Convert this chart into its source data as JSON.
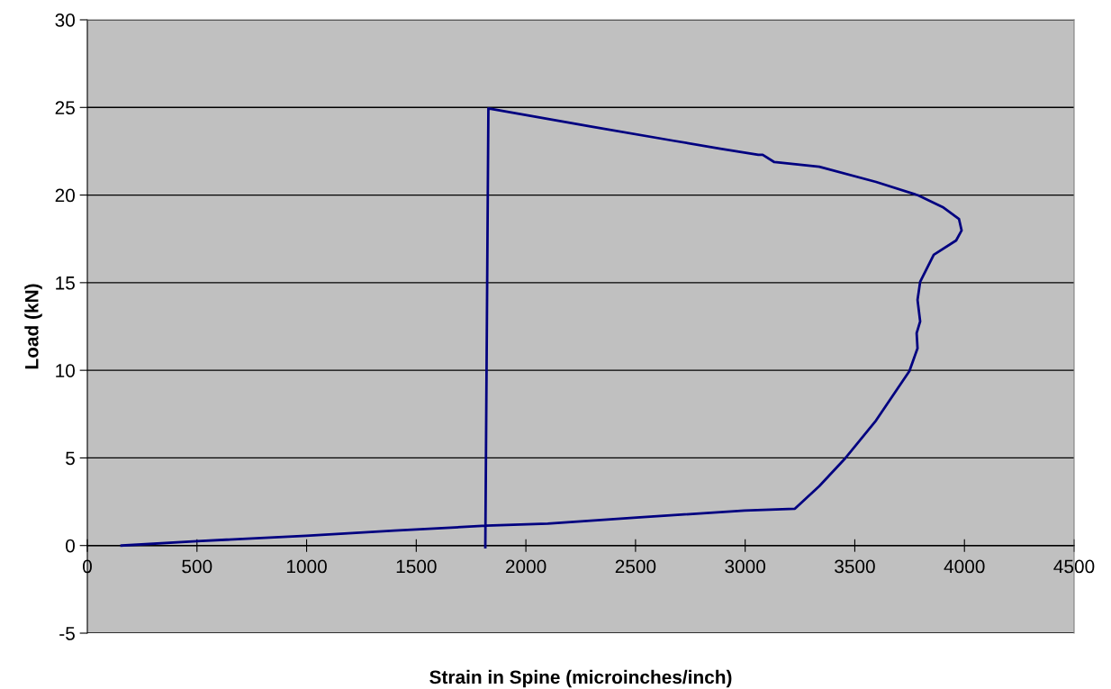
{
  "chart_data": {
    "type": "line",
    "xlabel": "Strain in Spine (microinches/inch)",
    "ylabel": "Load (kN)",
    "xlim": [
      0,
      4500
    ],
    "xticks": [
      0,
      500,
      1000,
      1500,
      2000,
      2500,
      3000,
      3500,
      4000,
      4500
    ],
    "ylim": [
      -5,
      30
    ],
    "yticks": [
      -5,
      0,
      5,
      10,
      15,
      20,
      25,
      30
    ],
    "grid": "y",
    "marker": "none",
    "line_style": "solid",
    "series": [
      {
        "color": "#000080",
        "x": [
          156,
          500,
          998,
          1400,
          1819,
          2100,
          2505,
          2997,
          3227,
          3338,
          3453,
          3597,
          3749,
          3786,
          3782,
          3798,
          3786,
          3798,
          3860,
          3962,
          3987,
          3975,
          3901,
          3790,
          3597,
          3338,
          3133,
          3080,
          3060,
          2887,
          2673,
          2300,
          1829,
          1815
        ],
        "values": [
          0,
          0.25,
          0.56,
          0.85,
          1.13,
          1.25,
          1.6,
          2.0,
          2.1,
          3.39,
          4.93,
          7.14,
          9.96,
          11.25,
          12.12,
          12.79,
          14.02,
          15.05,
          16.59,
          17.41,
          17.98,
          18.64,
          19.31,
          19.98,
          20.75,
          21.62,
          21.88,
          22.3,
          22.3,
          22.65,
          23.1,
          23.9,
          24.94,
          -0.1
        ]
      }
    ]
  }
}
